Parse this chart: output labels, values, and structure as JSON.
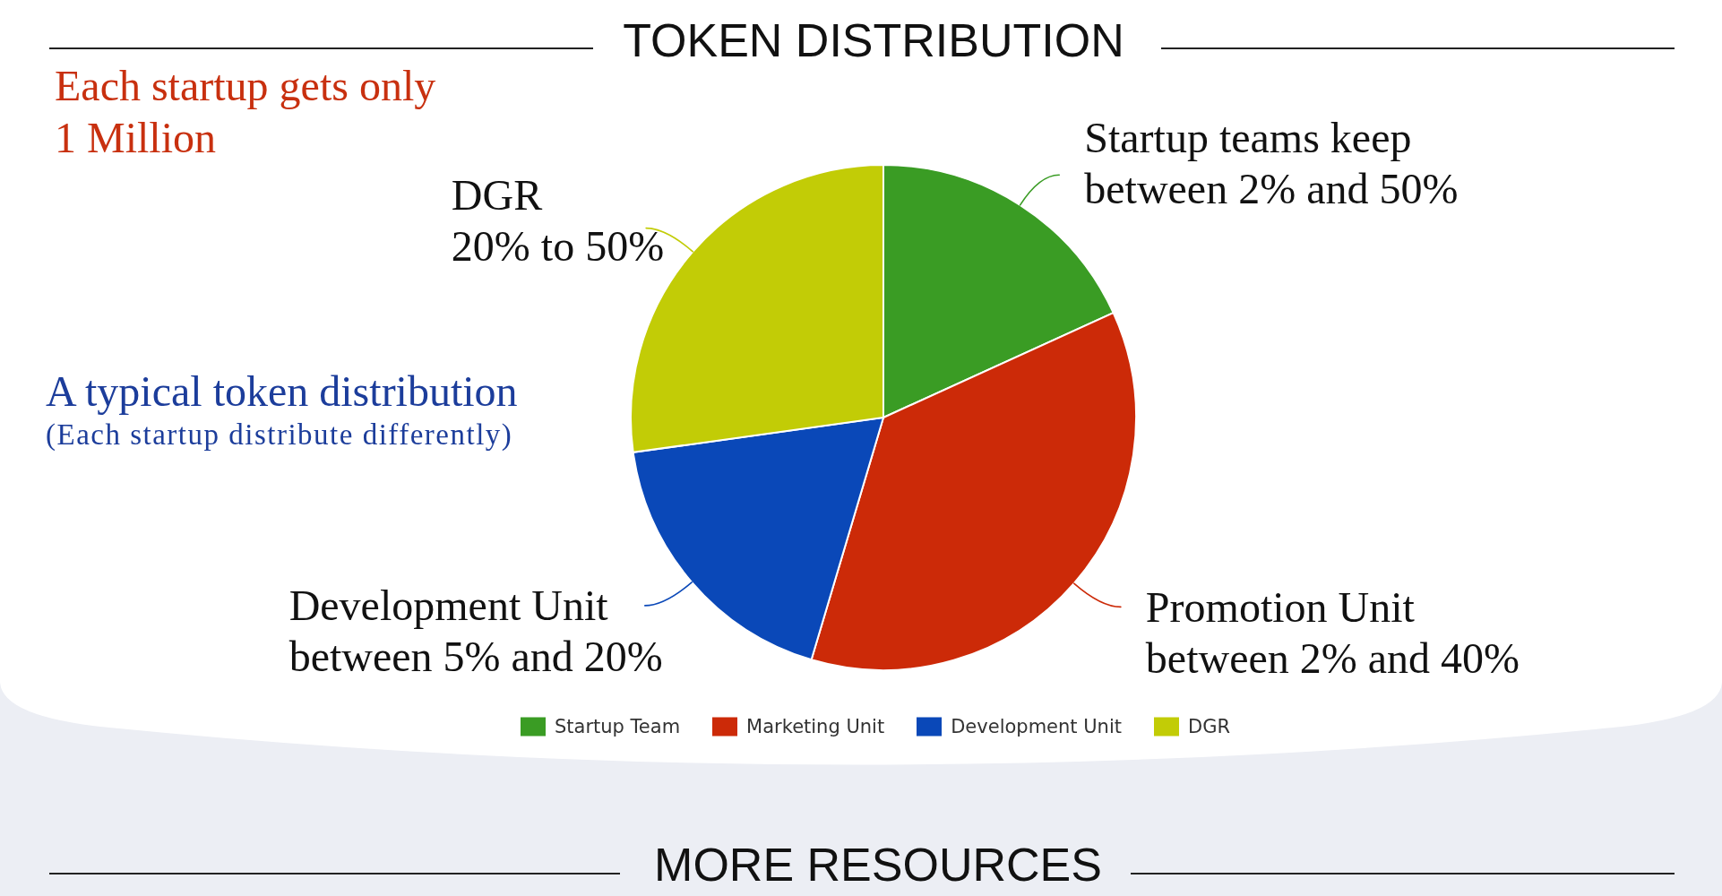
{
  "chart_data": {
    "type": "pie",
    "title": "TOKEN DISTRIBUTION",
    "categories": [
      "Startup Team",
      "Marketing Unit",
      "Development Unit",
      "DGR"
    ],
    "values": [
      18.2,
      36.4,
      18.2,
      27.2
    ],
    "colors": [
      "#3a9c24",
      "#cc2a08",
      "#0a48b8",
      "#c2cc06"
    ],
    "legend": "bottom",
    "annotations": [
      "Each startup gets only\n1 Million",
      "A typical token distribution",
      "(Each startup distribute differently)",
      "MORE RESOURCES",
      {
        "text": "Startup teams keep\nbetween 2% and 50%",
        "x": "Startup Team"
      },
      {
        "text": "Promotion Unit\nbetween 2% and 40%",
        "x": "Marketing Unit"
      },
      {
        "text": "Development Unit\nbetween 5% and 20%",
        "x": "Development Unit"
      },
      {
        "text": "DGR\n20% to 50%",
        "x": "DGR"
      }
    ]
  }
}
